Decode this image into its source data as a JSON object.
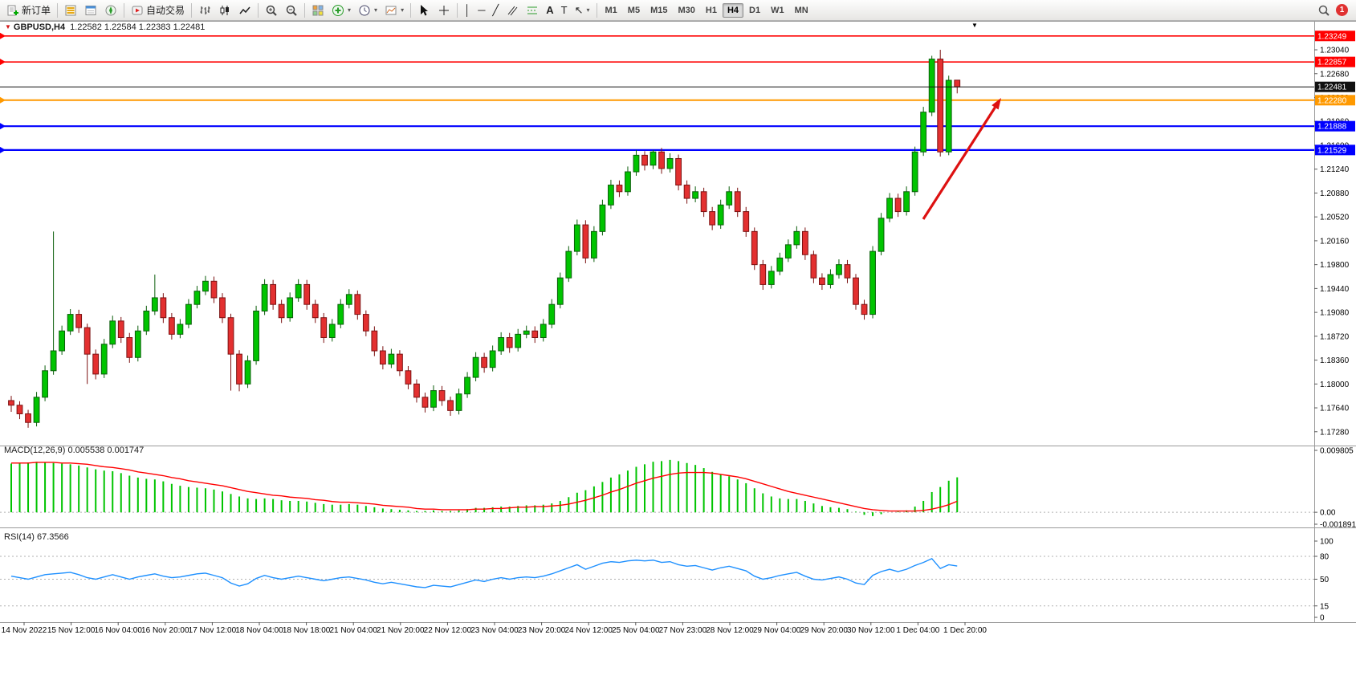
{
  "toolbar": {
    "new_order_label": "新订单",
    "autotrading_label": "自动交易",
    "timeframes": [
      "M1",
      "M5",
      "M15",
      "M30",
      "H1",
      "H4",
      "D1",
      "W1",
      "MN"
    ],
    "active_timeframe": "H4",
    "notification_count": "1",
    "glyphs": {
      "vline": "│",
      "hline": "─",
      "trendline": "╱",
      "text": "A",
      "label": "T",
      "arrows": "↖",
      "dropdown": "▾"
    },
    "icons": [
      "new-order-icon",
      "market-watch-icon",
      "data-window-icon",
      "navigator-icon",
      "autotrading-icon",
      "bar-chart-icon",
      "candlestick-chart-icon",
      "line-chart-icon",
      "zoom-in-icon",
      "zoom-out-icon",
      "tile-windows-icon",
      "indicators-icon",
      "periods-icon",
      "templates-icon",
      "cursor-icon",
      "crosshair-icon",
      "vertical-line-icon",
      "horizontal-line-icon",
      "trendline-icon",
      "channel-icon",
      "fibonacci-icon",
      "text-icon",
      "arrows-icon",
      "search-icon",
      "notification-badge"
    ]
  },
  "chart": {
    "symbol": "GBPUSD,H4",
    "ohlc_values": "1.22582 1.22584 1.22383 1.22481",
    "symbol_marker": "▼",
    "shift_marker": "▼"
  },
  "colors": {
    "bull": "#00c400",
    "bull_border": "#0b5e0b",
    "bear": "#e33030",
    "bear_border": "#7c1212",
    "macd_histogram": "#00c400",
    "macd_signal": "#ff0000",
    "rsi": "#1e90ff",
    "line_red": "#ff0000",
    "line_orange": "#ff9900",
    "line_blue": "#0000ff",
    "current_price": "#111111",
    "arrow": "#dd1111"
  },
  "chart_data": [
    {
      "type": "candlestick",
      "title": "GBPUSD,H4",
      "ylim": [
        1.1712,
        1.2344
      ],
      "y_ticks": [
        "1.23040",
        "1.22680",
        "1.22320",
        "1.21960",
        "1.21600",
        "1.21240",
        "1.20880",
        "1.20520",
        "1.20160",
        "1.19800",
        "1.19440",
        "1.19080",
        "1.18720",
        "1.18360",
        "1.18000",
        "1.17640",
        "1.17280"
      ],
      "x_labels": [
        "14 Nov 2022",
        "15 Nov 12:00",
        "16 Nov 04:00",
        "16 Nov 20:00",
        "17 Nov 12:00",
        "18 Nov 04:00",
        "18 Nov 18:00",
        "21 Nov 04:00",
        "21 Nov 20:00",
        "22 Nov 12:00",
        "23 Nov 04:00",
        "23 Nov 20:00",
        "24 Nov 12:00",
        "25 Nov 04:00",
        "27 Nov 23:00",
        "28 Nov 12:00",
        "29 Nov 04:00",
        "29 Nov 20:00",
        "30 Nov 12:00",
        "1 Dec 04:00",
        "1 Dec 20:00"
      ],
      "hlines": [
        {
          "price": 1.23249,
          "label": "1.23249",
          "color": "#ff0000",
          "width": 1.6
        },
        {
          "price": 1.22857,
          "label": "1.22857",
          "color": "#ff0000",
          "width": 1.6
        },
        {
          "price": 1.2228,
          "label": "1.22280",
          "color": "#ff9900",
          "width": 2
        },
        {
          "price": 1.21888,
          "label": "1.21888",
          "color": "#0000ff",
          "width": 2.2
        },
        {
          "price": 1.21529,
          "label": "1.21529",
          "color": "#0000ff",
          "width": 2.2
        }
      ],
      "current_price": {
        "value": 1.22481,
        "label": "1.22481",
        "color": "#111111"
      },
      "drawings": [
        {
          "type": "arrow",
          "from": [
            1150,
            247
          ],
          "to": [
            1247,
            96
          ],
          "color": "#dd1111",
          "width": 3.2
        }
      ],
      "ohlc": [
        [
          1.1775,
          1.1782,
          1.1758,
          1.1768
        ],
        [
          1.1768,
          1.1774,
          1.1747,
          1.1755
        ],
        [
          1.1755,
          1.1761,
          1.1734,
          1.1742
        ],
        [
          1.1742,
          1.1788,
          1.1736,
          1.178
        ],
        [
          1.178,
          1.1828,
          1.1774,
          1.182
        ],
        [
          1.182,
          1.203,
          1.1814,
          1.185
        ],
        [
          1.185,
          1.1888,
          1.1844,
          1.188
        ],
        [
          1.188,
          1.1913,
          1.1874,
          1.1905
        ],
        [
          1.1905,
          1.1912,
          1.1877,
          1.1885
        ],
        [
          1.1885,
          1.1891,
          1.18,
          1.1845
        ],
        [
          1.1845,
          1.1852,
          1.1807,
          1.1815
        ],
        [
          1.1815,
          1.1868,
          1.1809,
          1.186
        ],
        [
          1.186,
          1.1903,
          1.1854,
          1.1895
        ],
        [
          1.1895,
          1.1901,
          1.1862,
          1.187
        ],
        [
          1.187,
          1.1877,
          1.1832,
          1.184
        ],
        [
          1.184,
          1.1888,
          1.1834,
          1.188
        ],
        [
          1.188,
          1.1918,
          1.1874,
          1.191
        ],
        [
          1.191,
          1.1965,
          1.1904,
          1.193
        ],
        [
          1.193,
          1.1937,
          1.1892,
          1.19
        ],
        [
          1.19,
          1.1907,
          1.1867,
          1.1875
        ],
        [
          1.1875,
          1.1898,
          1.1869,
          1.189
        ],
        [
          1.189,
          1.1928,
          1.1884,
          1.192
        ],
        [
          1.192,
          1.1948,
          1.1914,
          1.194
        ],
        [
          1.194,
          1.1963,
          1.1934,
          1.1955
        ],
        [
          1.1955,
          1.1962,
          1.1922,
          1.193
        ],
        [
          1.193,
          1.1937,
          1.1892,
          1.19
        ],
        [
          1.19,
          1.1906,
          1.179,
          1.1845
        ],
        [
          1.1845,
          1.1851,
          1.1789,
          1.18
        ],
        [
          1.18,
          1.1843,
          1.1794,
          1.1835
        ],
        [
          1.1835,
          1.1918,
          1.1829,
          1.191
        ],
        [
          1.191,
          1.1958,
          1.1904,
          1.195
        ],
        [
          1.195,
          1.1957,
          1.1912,
          1.192
        ],
        [
          1.192,
          1.1927,
          1.1892,
          1.19
        ],
        [
          1.19,
          1.1938,
          1.1894,
          1.193
        ],
        [
          1.193,
          1.1958,
          1.1924,
          1.195
        ],
        [
          1.195,
          1.1957,
          1.1912,
          1.192
        ],
        [
          1.192,
          1.1927,
          1.1892,
          1.19
        ],
        [
          1.19,
          1.1907,
          1.1862,
          1.187
        ],
        [
          1.187,
          1.1898,
          1.1864,
          1.189
        ],
        [
          1.189,
          1.1928,
          1.1884,
          1.192
        ],
        [
          1.192,
          1.1943,
          1.1914,
          1.1935
        ],
        [
          1.1935,
          1.1941,
          1.1897,
          1.1905
        ],
        [
          1.1905,
          1.1911,
          1.1872,
          1.188
        ],
        [
          1.188,
          1.1887,
          1.1842,
          1.185
        ],
        [
          1.185,
          1.1857,
          1.1822,
          1.183
        ],
        [
          1.183,
          1.1853,
          1.1824,
          1.1845
        ],
        [
          1.1845,
          1.1851,
          1.1812,
          1.182
        ],
        [
          1.182,
          1.1827,
          1.1792,
          1.18
        ],
        [
          1.18,
          1.1807,
          1.1772,
          1.178
        ],
        [
          1.178,
          1.1787,
          1.1757,
          1.1765
        ],
        [
          1.1765,
          1.1798,
          1.1759,
          1.179
        ],
        [
          1.179,
          1.1797,
          1.1767,
          1.1775
        ],
        [
          1.1775,
          1.1781,
          1.1752,
          1.176
        ],
        [
          1.176,
          1.1793,
          1.1754,
          1.1785
        ],
        [
          1.1785,
          1.1818,
          1.1779,
          1.181
        ],
        [
          1.181,
          1.1848,
          1.1804,
          1.184
        ],
        [
          1.184,
          1.1847,
          1.1817,
          1.1825
        ],
        [
          1.1825,
          1.1858,
          1.1819,
          1.185
        ],
        [
          1.185,
          1.1878,
          1.1844,
          1.187
        ],
        [
          1.187,
          1.1877,
          1.1847,
          1.1855
        ],
        [
          1.1855,
          1.1883,
          1.1849,
          1.1875
        ],
        [
          1.1875,
          1.1888,
          1.1869,
          1.188
        ],
        [
          1.188,
          1.1887,
          1.1862,
          1.187
        ],
        [
          1.187,
          1.1898,
          1.1864,
          1.189
        ],
        [
          1.189,
          1.1928,
          1.1884,
          1.192
        ],
        [
          1.192,
          1.1968,
          1.1914,
          1.196
        ],
        [
          1.196,
          1.2008,
          1.1954,
          1.2
        ],
        [
          1.2,
          1.2048,
          1.1994,
          1.204
        ],
        [
          1.204,
          1.2047,
          1.1982,
          1.199
        ],
        [
          1.199,
          1.2038,
          1.1984,
          1.203
        ],
        [
          1.203,
          1.2078,
          1.2024,
          1.207
        ],
        [
          1.207,
          1.2108,
          1.2064,
          1.21
        ],
        [
          1.21,
          1.2107,
          1.2082,
          1.209
        ],
        [
          1.209,
          1.2128,
          1.2084,
          1.212
        ],
        [
          1.212,
          1.2153,
          1.2114,
          1.2145
        ],
        [
          1.2145,
          1.2151,
          1.2122,
          1.213
        ],
        [
          1.213,
          1.2153,
          1.2124,
          1.215
        ],
        [
          1.215,
          1.2156,
          1.2117,
          1.2125
        ],
        [
          1.2125,
          1.2148,
          1.2119,
          1.214
        ],
        [
          1.214,
          1.2146,
          1.2092,
          1.21
        ],
        [
          1.21,
          1.2107,
          1.2072,
          1.208
        ],
        [
          1.208,
          1.2098,
          1.2074,
          1.209
        ],
        [
          1.209,
          1.2096,
          1.2052,
          1.206
        ],
        [
          1.206,
          1.2067,
          1.2032,
          1.204
        ],
        [
          1.204,
          1.2078,
          1.2034,
          1.207
        ],
        [
          1.207,
          1.2098,
          1.2064,
          1.209
        ],
        [
          1.209,
          1.2096,
          1.2052,
          1.206
        ],
        [
          1.206,
          1.2067,
          1.2022,
          1.203
        ],
        [
          1.203,
          1.2036,
          1.1972,
          1.198
        ],
        [
          1.198,
          1.1987,
          1.1942,
          1.195
        ],
        [
          1.195,
          1.1978,
          1.1944,
          1.197
        ],
        [
          1.197,
          1.1998,
          1.1964,
          1.199
        ],
        [
          1.199,
          1.2018,
          1.1984,
          1.201
        ],
        [
          1.201,
          1.2038,
          1.2004,
          1.203
        ],
        [
          1.203,
          1.2036,
          1.1987,
          1.1995
        ],
        [
          1.1995,
          1.2001,
          1.1952,
          1.196
        ],
        [
          1.196,
          1.1967,
          1.1942,
          1.195
        ],
        [
          1.195,
          1.1973,
          1.1944,
          1.1965
        ],
        [
          1.1965,
          1.1988,
          1.1959,
          1.198
        ],
        [
          1.198,
          1.1987,
          1.1952,
          1.196
        ],
        [
          1.196,
          1.1966,
          1.1912,
          1.192
        ],
        [
          1.192,
          1.1927,
          1.1897,
          1.1905
        ],
        [
          1.1905,
          1.2008,
          1.1899,
          1.2
        ],
        [
          1.2,
          1.2058,
          1.1994,
          1.205
        ],
        [
          1.205,
          1.2088,
          1.2044,
          1.208
        ],
        [
          1.208,
          1.2087,
          1.2052,
          1.206
        ],
        [
          1.206,
          1.2098,
          1.2054,
          1.209
        ],
        [
          1.209,
          1.2158,
          1.2084,
          1.215
        ],
        [
          1.215,
          1.2218,
          1.2144,
          1.221
        ],
        [
          1.221,
          1.2295,
          1.2204,
          1.229
        ],
        [
          1.229,
          1.2304,
          1.2143,
          1.215
        ],
        [
          1.215,
          1.2265,
          1.2145,
          1.2258
        ],
        [
          1.22582,
          1.22584,
          1.22383,
          1.22481
        ]
      ]
    },
    {
      "type": "bar",
      "name": "MACD",
      "label": "MACD(12,26,9) 0.005538 0.001747",
      "ylim": [
        -0.001891,
        0.009805
      ],
      "y_ticks": [
        {
          "v": 0.009805,
          "label": "0.009805"
        },
        {
          "v": 0,
          "label": "0.00"
        },
        {
          "v": -0.001891,
          "label": "-0.001891"
        }
      ],
      "histogram": [
        0.0077,
        0.0078,
        0.0079,
        0.008,
        0.0079,
        0.0078,
        0.0077,
        0.0076,
        0.0074,
        0.0071,
        0.0068,
        0.0066,
        0.0065,
        0.0062,
        0.0058,
        0.0055,
        0.0053,
        0.0052,
        0.0049,
        0.0045,
        0.0042,
        0.004,
        0.0039,
        0.0038,
        0.0036,
        0.0033,
        0.0029,
        0.0025,
        0.0022,
        0.0021,
        0.0022,
        0.0021,
        0.0019,
        0.0018,
        0.0018,
        0.0017,
        0.0015,
        0.0013,
        0.0012,
        0.0012,
        0.0013,
        0.0012,
        0.001,
        0.0008,
        0.0006,
        0.0005,
        0.0004,
        0.0003,
        0.0002,
        0.0002,
        0.0003,
        0.0002,
        0.0002,
        0.0003,
        0.0005,
        0.0007,
        0.0007,
        0.0008,
        0.0009,
        0.0009,
        0.001,
        0.0011,
        0.0011,
        0.0012,
        0.0014,
        0.0018,
        0.0024,
        0.0031,
        0.0035,
        0.0041,
        0.0048,
        0.0055,
        0.006,
        0.0066,
        0.0072,
        0.0076,
        0.008,
        0.0081,
        0.0083,
        0.0081,
        0.0078,
        0.0075,
        0.007,
        0.0064,
        0.006,
        0.0057,
        0.0052,
        0.0046,
        0.0038,
        0.003,
        0.0025,
        0.0022,
        0.0021,
        0.0021,
        0.0018,
        0.0014,
        0.001,
        0.0008,
        0.0007,
        0.0005,
        0.0001,
        -0.0004,
        -0.0006,
        -0.0003,
        0.0,
        0.0001,
        0.0003,
        0.0009,
        0.0018,
        0.0032,
        0.004,
        0.005,
        0.005538
      ],
      "signal": [
        0.0078,
        0.0078,
        0.0078,
        0.0079,
        0.0079,
        0.0079,
        0.0078,
        0.0078,
        0.0077,
        0.0076,
        0.0074,
        0.0072,
        0.0071,
        0.0069,
        0.0067,
        0.0064,
        0.0062,
        0.006,
        0.0058,
        0.0055,
        0.0053,
        0.005,
        0.0048,
        0.0046,
        0.0044,
        0.0042,
        0.0039,
        0.0036,
        0.0033,
        0.0031,
        0.0029,
        0.0027,
        0.0026,
        0.0024,
        0.0023,
        0.0022,
        0.002,
        0.0019,
        0.0017,
        0.0016,
        0.0016,
        0.0015,
        0.0014,
        0.0013,
        0.0011,
        0.001,
        0.0009,
        0.0008,
        0.0006,
        0.0005,
        0.0005,
        0.0004,
        0.0004,
        0.0004,
        0.0004,
        0.0005,
        0.0005,
        0.0006,
        0.0006,
        0.0007,
        0.0008,
        0.0008,
        0.0009,
        0.0009,
        0.001,
        0.0011,
        0.0013,
        0.0016,
        0.0019,
        0.0023,
        0.0027,
        0.0032,
        0.0036,
        0.0041,
        0.0046,
        0.005,
        0.0054,
        0.0057,
        0.006,
        0.0062,
        0.0063,
        0.0063,
        0.0063,
        0.0062,
        0.006,
        0.0058,
        0.0056,
        0.0053,
        0.0049,
        0.0045,
        0.0041,
        0.0037,
        0.0033,
        0.003,
        0.0027,
        0.0024,
        0.0021,
        0.0018,
        0.0015,
        0.0012,
        0.0009,
        0.0006,
        0.0004,
        0.0003,
        0.0002,
        0.0002,
        0.0002,
        0.0002,
        0.0003,
        0.0005,
        0.0008,
        0.0012,
        0.001747
      ]
    },
    {
      "type": "line",
      "name": "RSI",
      "label": "RSI(14) 67.3566",
      "ylim": [
        0,
        100
      ],
      "levels": [
        80,
        50,
        15
      ],
      "y_ticks": [
        {
          "v": 100,
          "label": "100"
        },
        {
          "v": 80,
          "label": "80"
        },
        {
          "v": 50,
          "label": "50"
        },
        {
          "v": 15,
          "label": "15"
        },
        {
          "v": 0,
          "label": "0"
        }
      ],
      "values": [
        54,
        52,
        50,
        53,
        56,
        57,
        58,
        59,
        56,
        52,
        50,
        53,
        56,
        53,
        50,
        53,
        55,
        57,
        54,
        52,
        53,
        55,
        57,
        58,
        55,
        52,
        45,
        41,
        44,
        51,
        55,
        52,
        50,
        52,
        54,
        52,
        50,
        48,
        50,
        52,
        53,
        51,
        49,
        46,
        44,
        46,
        44,
        42,
        40,
        39,
        42,
        41,
        40,
        43,
        46,
        49,
        47,
        50,
        52,
        50,
        52,
        53,
        52,
        54,
        57,
        61,
        65,
        69,
        63,
        67,
        71,
        73,
        72,
        74,
        75,
        74,
        75,
        72,
        73,
        69,
        67,
        68,
        65,
        62,
        65,
        67,
        64,
        61,
        54,
        50,
        52,
        55,
        57,
        59,
        54,
        50,
        49,
        51,
        53,
        50,
        45,
        43,
        55,
        60,
        63,
        60,
        63,
        68,
        72,
        77,
        64,
        69,
        67.3566
      ]
    }
  ]
}
